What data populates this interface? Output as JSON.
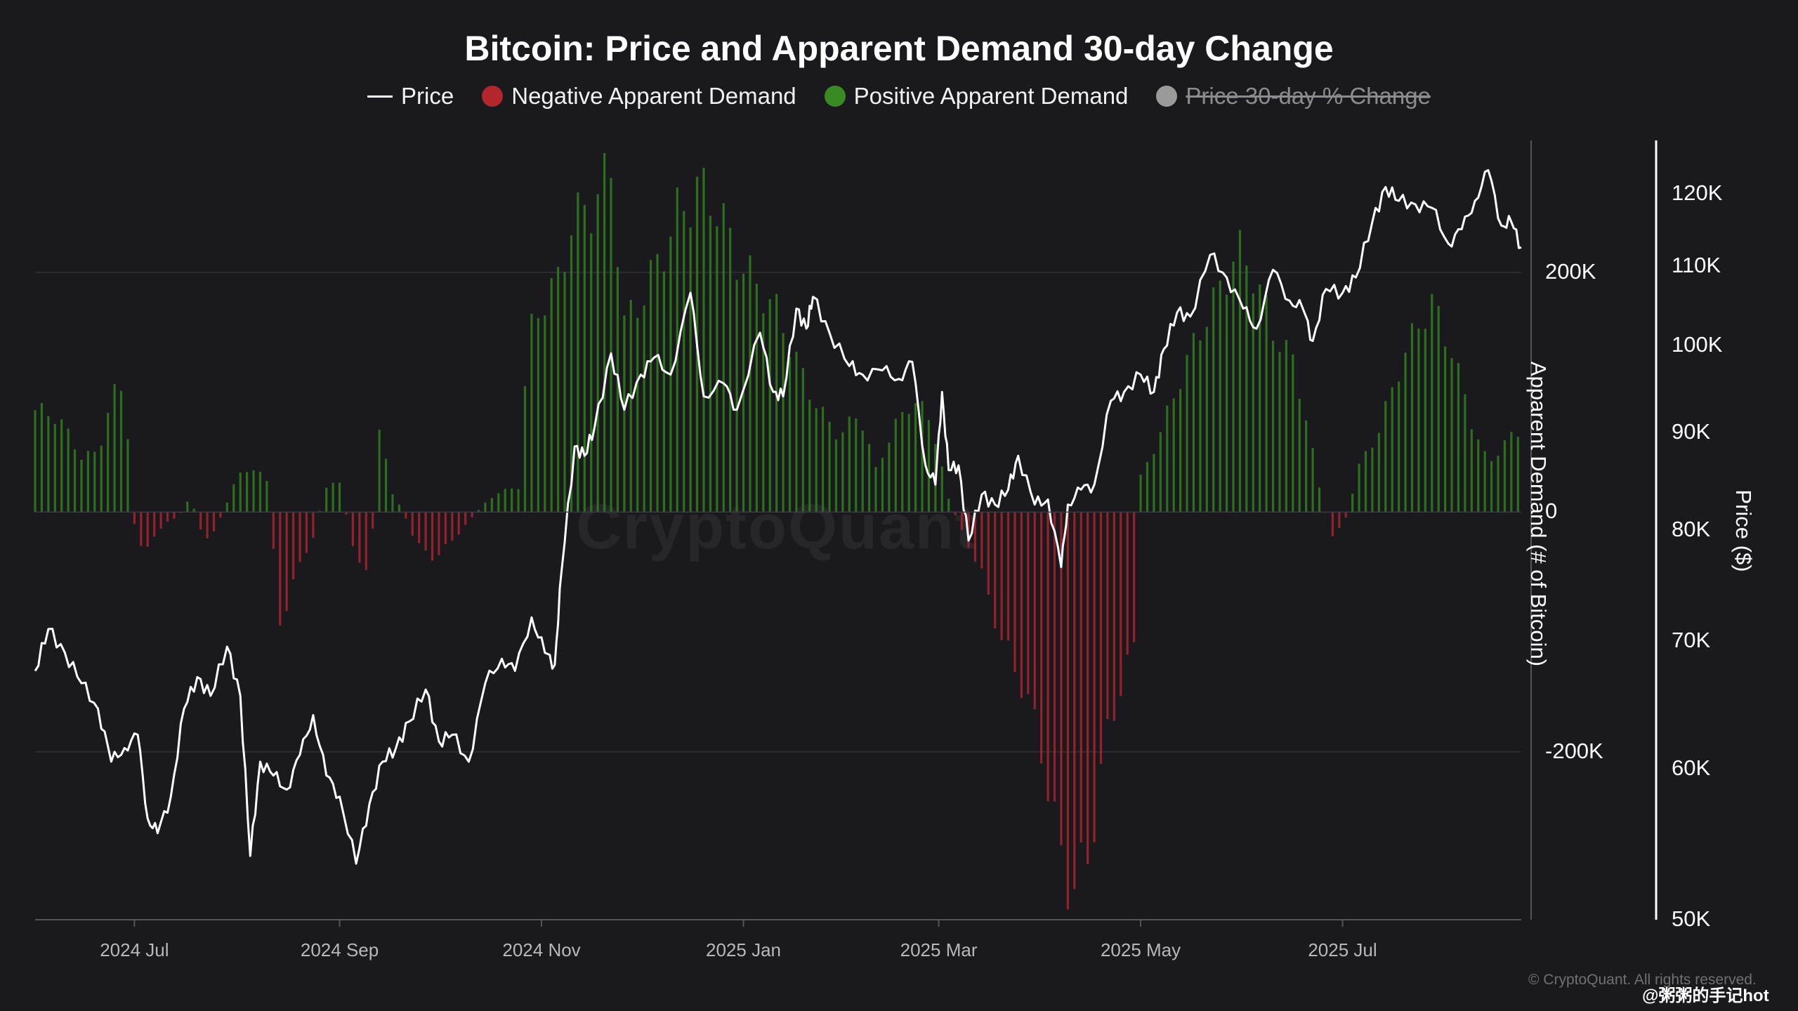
{
  "chart_data": {
    "type": "bar+line",
    "title": "Bitcoin: Price and Apparent Demand 30-day Change",
    "legend": [
      {
        "label": "Price",
        "marker": "line",
        "color": "#ffffff",
        "enabled": true
      },
      {
        "label": "Negative Apparent Demand",
        "marker": "dot",
        "color": "#c0262d",
        "enabled": true
      },
      {
        "label": "Positive Apparent Demand",
        "marker": "dot",
        "color": "#3a8a23",
        "enabled": true
      },
      {
        "label": "Price 30-day % Change",
        "marker": "dot",
        "color": "#9a9a9a",
        "enabled": false
      }
    ],
    "x_axis": {
      "start": "2024-06-01",
      "end": "2025-08-24",
      "tick_labels": [
        {
          "date": "2024-07-01",
          "label": "2024 Jul"
        },
        {
          "date": "2024-09-01",
          "label": "2024 Sep"
        },
        {
          "date": "2024-11-01",
          "label": "2024 Nov"
        },
        {
          "date": "2025-01-01",
          "label": "2025 Jan"
        },
        {
          "date": "2025-03-01",
          "label": "2025 Mar"
        },
        {
          "date": "2025-05-01",
          "label": "2025 May"
        },
        {
          "date": "2025-07-01",
          "label": "2025 Jul"
        }
      ]
    },
    "y_left": {
      "label": "Apparent Demand (# of Bitcoin)",
      "range": [
        -340000,
        310000
      ],
      "ticks": [
        {
          "value": 200000,
          "label": "200K"
        },
        {
          "value": 0,
          "label": "0"
        },
        {
          "value": -200000,
          "label": "-200K"
        }
      ]
    },
    "y_right": {
      "label": "Price ($)",
      "scale": "log",
      "range": [
        50000,
        128000
      ],
      "ticks": [
        {
          "value": 120000,
          "label": "120K"
        },
        {
          "value": 110000,
          "label": "110K"
        },
        {
          "value": 100000,
          "label": "100K"
        },
        {
          "value": 90000,
          "label": "90K"
        },
        {
          "value": 80000,
          "label": "80K"
        },
        {
          "value": 70000,
          "label": "70K"
        },
        {
          "value": 60000,
          "label": "60K"
        },
        {
          "value": 50000,
          "label": "50K"
        }
      ]
    },
    "demand_series": {
      "name": "Apparent Demand 30-day Change",
      "interval_days": 2,
      "anchors": [
        [
          "2024-06-01",
          85000
        ],
        [
          "2024-06-08",
          75000
        ],
        [
          "2024-06-15",
          45000
        ],
        [
          "2024-06-20",
          50000
        ],
        [
          "2024-06-24",
          100000
        ],
        [
          "2024-06-28",
          110000
        ],
        [
          "2024-07-01",
          -10000
        ],
        [
          "2024-07-04",
          -35000
        ],
        [
          "2024-07-10",
          -8000
        ],
        [
          "2024-07-14",
          -5000
        ],
        [
          "2024-07-18",
          12000
        ],
        [
          "2024-07-22",
          -25000
        ],
        [
          "2024-07-26",
          -12000
        ],
        [
          "2024-08-01",
          30000
        ],
        [
          "2024-08-05",
          40000
        ],
        [
          "2024-08-10",
          25000
        ],
        [
          "2024-08-14",
          -90000
        ],
        [
          "2024-08-18",
          -55000
        ],
        [
          "2024-08-24",
          -20000
        ],
        [
          "2024-08-28",
          22000
        ],
        [
          "2024-09-01",
          25000
        ],
        [
          "2024-09-05",
          -30000
        ],
        [
          "2024-09-10",
          -55000
        ],
        [
          "2024-09-13",
          65000
        ],
        [
          "2024-09-17",
          15000
        ],
        [
          "2024-09-20",
          2000
        ],
        [
          "2024-09-24",
          -25000
        ],
        [
          "2024-09-30",
          -40000
        ],
        [
          "2024-10-08",
          -15000
        ],
        [
          "2024-10-14",
          5000
        ],
        [
          "2024-10-18",
          15000
        ],
        [
          "2024-10-25",
          20000
        ],
        [
          "2024-10-28",
          140000
        ],
        [
          "2024-11-01",
          175000
        ],
        [
          "2024-11-06",
          200000
        ],
        [
          "2024-11-10",
          255000
        ],
        [
          "2024-11-16",
          260000
        ],
        [
          "2024-11-22",
          275000
        ],
        [
          "2024-11-26",
          150000
        ],
        [
          "2024-12-01",
          170000
        ],
        [
          "2024-12-06",
          210000
        ],
        [
          "2024-12-12",
          260000
        ],
        [
          "2024-12-18",
          280000
        ],
        [
          "2024-12-24",
          250000
        ],
        [
          "2024-12-30",
          200000
        ],
        [
          "2025-01-05",
          185000
        ],
        [
          "2025-01-12",
          170000
        ],
        [
          "2025-01-18",
          125000
        ],
        [
          "2025-01-24",
          85000
        ],
        [
          "2025-01-30",
          60000
        ],
        [
          "2025-02-05",
          80000
        ],
        [
          "2025-02-10",
          35000
        ],
        [
          "2025-02-15",
          70000
        ],
        [
          "2025-02-21",
          100000
        ],
        [
          "2025-02-27",
          75000
        ],
        [
          "2025-03-04",
          10000
        ],
        [
          "2025-03-08",
          -15000
        ],
        [
          "2025-03-14",
          -50000
        ],
        [
          "2025-03-20",
          -110000
        ],
        [
          "2025-03-26",
          -150000
        ],
        [
          "2025-04-01",
          -200000
        ],
        [
          "2025-04-06",
          -270000
        ],
        [
          "2025-04-10",
          -300000
        ],
        [
          "2025-04-15",
          -280000
        ],
        [
          "2025-04-20",
          -200000
        ],
        [
          "2025-04-25",
          -150000
        ],
        [
          "2025-04-29",
          -120000
        ],
        [
          "2025-05-01",
          30000
        ],
        [
          "2025-05-06",
          60000
        ],
        [
          "2025-05-12",
          100000
        ],
        [
          "2025-05-18",
          140000
        ],
        [
          "2025-05-24",
          180000
        ],
        [
          "2025-05-30",
          230000
        ],
        [
          "2025-06-04",
          210000
        ],
        [
          "2025-06-10",
          150000
        ],
        [
          "2025-06-16",
          120000
        ],
        [
          "2025-06-20",
          75000
        ],
        [
          "2025-06-24",
          20000
        ],
        [
          "2025-06-28",
          -20000
        ],
        [
          "2025-07-02",
          -5000
        ],
        [
          "2025-07-06",
          40000
        ],
        [
          "2025-07-12",
          70000
        ],
        [
          "2025-07-18",
          115000
        ],
        [
          "2025-07-24",
          150000
        ],
        [
          "2025-07-28",
          170000
        ],
        [
          "2025-08-03",
          140000
        ],
        [
          "2025-08-09",
          80000
        ],
        [
          "2025-08-14",
          40000
        ],
        [
          "2025-08-18",
          55000
        ],
        [
          "2025-08-24",
          65000
        ]
      ]
    },
    "price_series": {
      "name": "Price",
      "points": [
        [
          "2024-06-01",
          67500
        ],
        [
          "2024-06-05",
          71000
        ],
        [
          "2024-06-10",
          69000
        ],
        [
          "2024-06-15",
          66500
        ],
        [
          "2024-06-20",
          64500
        ],
        [
          "2024-06-24",
          60500
        ],
        [
          "2024-06-28",
          61500
        ],
        [
          "2024-07-02",
          62500
        ],
        [
          "2024-07-05",
          56500
        ],
        [
          "2024-07-08",
          55500
        ],
        [
          "2024-07-12",
          58000
        ],
        [
          "2024-07-16",
          64500
        ],
        [
          "2024-07-20",
          67000
        ],
        [
          "2024-07-24",
          65500
        ],
        [
          "2024-07-29",
          69500
        ],
        [
          "2024-08-02",
          65500
        ],
        [
          "2024-08-05",
          54000
        ],
        [
          "2024-08-08",
          60500
        ],
        [
          "2024-08-12",
          59500
        ],
        [
          "2024-08-16",
          58500
        ],
        [
          "2024-08-20",
          61000
        ],
        [
          "2024-08-24",
          64000
        ],
        [
          "2024-08-28",
          59500
        ],
        [
          "2024-09-01",
          58000
        ],
        [
          "2024-09-06",
          53500
        ],
        [
          "2024-09-10",
          57500
        ],
        [
          "2024-09-14",
          60500
        ],
        [
          "2024-09-18",
          61500
        ],
        [
          "2024-09-22",
          63500
        ],
        [
          "2024-09-27",
          66000
        ],
        [
          "2024-10-01",
          62000
        ],
        [
          "2024-10-05",
          62500
        ],
        [
          "2024-10-10",
          60500
        ],
        [
          "2024-10-15",
          66500
        ],
        [
          "2024-10-20",
          68500
        ],
        [
          "2024-10-24",
          67500
        ],
        [
          "2024-10-29",
          72000
        ],
        [
          "2024-11-02",
          69000
        ],
        [
          "2024-11-05",
          68000
        ],
        [
          "2024-11-07",
          76000
        ],
        [
          "2024-11-11",
          88500
        ],
        [
          "2024-11-14",
          87500
        ],
        [
          "2024-11-17",
          90500
        ],
        [
          "2024-11-22",
          99000
        ],
        [
          "2024-11-26",
          92500
        ],
        [
          "2024-12-01",
          96500
        ],
        [
          "2024-12-05",
          98500
        ],
        [
          "2024-12-10",
          96500
        ],
        [
          "2024-12-16",
          106500
        ],
        [
          "2024-12-20",
          94000
        ],
        [
          "2024-12-26",
          95500
        ],
        [
          "2024-12-30",
          92500
        ],
        [
          "2025-01-06",
          101500
        ],
        [
          "2025-01-10",
          94500
        ],
        [
          "2025-01-13",
          94000
        ],
        [
          "2025-01-17",
          104500
        ],
        [
          "2025-01-20",
          102000
        ],
        [
          "2025-01-22",
          106000
        ],
        [
          "2025-01-27",
          101500
        ],
        [
          "2025-02-02",
          97500
        ],
        [
          "2025-02-06",
          96500
        ],
        [
          "2025-02-12",
          97000
        ],
        [
          "2025-02-17",
          96000
        ],
        [
          "2025-02-21",
          98000
        ],
        [
          "2025-02-25",
          86500
        ],
        [
          "2025-02-28",
          84500
        ],
        [
          "2025-03-02",
          94500
        ],
        [
          "2025-03-04",
          86000
        ],
        [
          "2025-03-07",
          86500
        ],
        [
          "2025-03-10",
          79000
        ],
        [
          "2025-03-14",
          83500
        ],
        [
          "2025-03-18",
          82500
        ],
        [
          "2025-03-22",
          84000
        ],
        [
          "2025-03-25",
          87500
        ],
        [
          "2025-03-30",
          82500
        ],
        [
          "2025-04-03",
          83000
        ],
        [
          "2025-04-07",
          76500
        ],
        [
          "2025-04-09",
          82500
        ],
        [
          "2025-04-13",
          84000
        ],
        [
          "2025-04-17",
          84500
        ],
        [
          "2025-04-22",
          93500
        ],
        [
          "2025-04-26",
          94500
        ],
        [
          "2025-05-01",
          96500
        ],
        [
          "2025-05-05",
          94500
        ],
        [
          "2025-05-08",
          99500
        ],
        [
          "2025-05-12",
          104000
        ],
        [
          "2025-05-16",
          103500
        ],
        [
          "2025-05-22",
          111500
        ],
        [
          "2025-05-27",
          108500
        ],
        [
          "2025-06-01",
          104500
        ],
        [
          "2025-06-05",
          102000
        ],
        [
          "2025-06-10",
          109500
        ],
        [
          "2025-06-15",
          105500
        ],
        [
          "2025-06-19",
          104500
        ],
        [
          "2025-06-22",
          100500
        ],
        [
          "2025-06-26",
          107000
        ],
        [
          "2025-07-01",
          106500
        ],
        [
          "2025-07-05",
          108500
        ],
        [
          "2025-07-10",
          116000
        ],
        [
          "2025-07-14",
          121000
        ],
        [
          "2025-07-18",
          119000
        ],
        [
          "2025-07-23",
          118500
        ],
        [
          "2025-07-28",
          118000
        ],
        [
          "2025-08-02",
          113000
        ],
        [
          "2025-08-06",
          115000
        ],
        [
          "2025-08-10",
          119000
        ],
        [
          "2025-08-14",
          123500
        ],
        [
          "2025-08-18",
          115500
        ],
        [
          "2025-08-21",
          116000
        ],
        [
          "2025-08-24",
          112500
        ]
      ]
    }
  },
  "footer": {
    "copyright": "© CryptoQuant. All rights reserved.",
    "handle": "@粥粥的手记hot",
    "watermark": "CryptoQuant"
  }
}
